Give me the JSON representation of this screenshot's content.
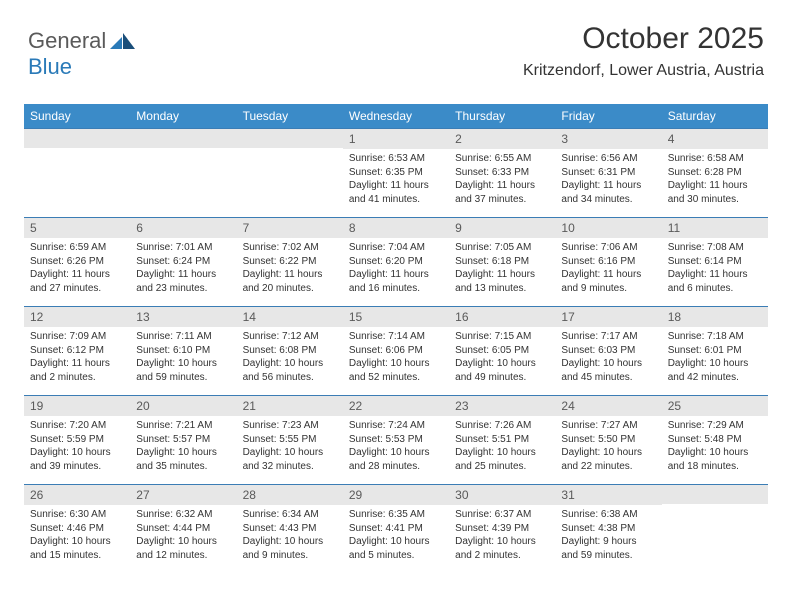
{
  "logo": {
    "word1": "General",
    "word2": "Blue"
  },
  "title": "October 2025",
  "location": "Kritzendorf, Lower Austria, Austria",
  "colors": {
    "header_bg": "#3b8bc8",
    "header_text": "#ffffff",
    "daynum_bg": "#e7e7e7",
    "daynum_text": "#5a5a5a",
    "border": "#3b7db5",
    "logo_gray": "#5a5a5a",
    "logo_blue": "#2a7ab8"
  },
  "dow": [
    "Sunday",
    "Monday",
    "Tuesday",
    "Wednesday",
    "Thursday",
    "Friday",
    "Saturday"
  ],
  "weeks": [
    [
      null,
      null,
      null,
      {
        "n": "1",
        "sr": "Sunrise: 6:53 AM",
        "ss": "Sunset: 6:35 PM",
        "dl": "Daylight: 11 hours and 41 minutes."
      },
      {
        "n": "2",
        "sr": "Sunrise: 6:55 AM",
        "ss": "Sunset: 6:33 PM",
        "dl": "Daylight: 11 hours and 37 minutes."
      },
      {
        "n": "3",
        "sr": "Sunrise: 6:56 AM",
        "ss": "Sunset: 6:31 PM",
        "dl": "Daylight: 11 hours and 34 minutes."
      },
      {
        "n": "4",
        "sr": "Sunrise: 6:58 AM",
        "ss": "Sunset: 6:28 PM",
        "dl": "Daylight: 11 hours and 30 minutes."
      }
    ],
    [
      {
        "n": "5",
        "sr": "Sunrise: 6:59 AM",
        "ss": "Sunset: 6:26 PM",
        "dl": "Daylight: 11 hours and 27 minutes."
      },
      {
        "n": "6",
        "sr": "Sunrise: 7:01 AM",
        "ss": "Sunset: 6:24 PM",
        "dl": "Daylight: 11 hours and 23 minutes."
      },
      {
        "n": "7",
        "sr": "Sunrise: 7:02 AM",
        "ss": "Sunset: 6:22 PM",
        "dl": "Daylight: 11 hours and 20 minutes."
      },
      {
        "n": "8",
        "sr": "Sunrise: 7:04 AM",
        "ss": "Sunset: 6:20 PM",
        "dl": "Daylight: 11 hours and 16 minutes."
      },
      {
        "n": "9",
        "sr": "Sunrise: 7:05 AM",
        "ss": "Sunset: 6:18 PM",
        "dl": "Daylight: 11 hours and 13 minutes."
      },
      {
        "n": "10",
        "sr": "Sunrise: 7:06 AM",
        "ss": "Sunset: 6:16 PM",
        "dl": "Daylight: 11 hours and 9 minutes."
      },
      {
        "n": "11",
        "sr": "Sunrise: 7:08 AM",
        "ss": "Sunset: 6:14 PM",
        "dl": "Daylight: 11 hours and 6 minutes."
      }
    ],
    [
      {
        "n": "12",
        "sr": "Sunrise: 7:09 AM",
        "ss": "Sunset: 6:12 PM",
        "dl": "Daylight: 11 hours and 2 minutes."
      },
      {
        "n": "13",
        "sr": "Sunrise: 7:11 AM",
        "ss": "Sunset: 6:10 PM",
        "dl": "Daylight: 10 hours and 59 minutes."
      },
      {
        "n": "14",
        "sr": "Sunrise: 7:12 AM",
        "ss": "Sunset: 6:08 PM",
        "dl": "Daylight: 10 hours and 56 minutes."
      },
      {
        "n": "15",
        "sr": "Sunrise: 7:14 AM",
        "ss": "Sunset: 6:06 PM",
        "dl": "Daylight: 10 hours and 52 minutes."
      },
      {
        "n": "16",
        "sr": "Sunrise: 7:15 AM",
        "ss": "Sunset: 6:05 PM",
        "dl": "Daylight: 10 hours and 49 minutes."
      },
      {
        "n": "17",
        "sr": "Sunrise: 7:17 AM",
        "ss": "Sunset: 6:03 PM",
        "dl": "Daylight: 10 hours and 45 minutes."
      },
      {
        "n": "18",
        "sr": "Sunrise: 7:18 AM",
        "ss": "Sunset: 6:01 PM",
        "dl": "Daylight: 10 hours and 42 minutes."
      }
    ],
    [
      {
        "n": "19",
        "sr": "Sunrise: 7:20 AM",
        "ss": "Sunset: 5:59 PM",
        "dl": "Daylight: 10 hours and 39 minutes."
      },
      {
        "n": "20",
        "sr": "Sunrise: 7:21 AM",
        "ss": "Sunset: 5:57 PM",
        "dl": "Daylight: 10 hours and 35 minutes."
      },
      {
        "n": "21",
        "sr": "Sunrise: 7:23 AM",
        "ss": "Sunset: 5:55 PM",
        "dl": "Daylight: 10 hours and 32 minutes."
      },
      {
        "n": "22",
        "sr": "Sunrise: 7:24 AM",
        "ss": "Sunset: 5:53 PM",
        "dl": "Daylight: 10 hours and 28 minutes."
      },
      {
        "n": "23",
        "sr": "Sunrise: 7:26 AM",
        "ss": "Sunset: 5:51 PM",
        "dl": "Daylight: 10 hours and 25 minutes."
      },
      {
        "n": "24",
        "sr": "Sunrise: 7:27 AM",
        "ss": "Sunset: 5:50 PM",
        "dl": "Daylight: 10 hours and 22 minutes."
      },
      {
        "n": "25",
        "sr": "Sunrise: 7:29 AM",
        "ss": "Sunset: 5:48 PM",
        "dl": "Daylight: 10 hours and 18 minutes."
      }
    ],
    [
      {
        "n": "26",
        "sr": "Sunrise: 6:30 AM",
        "ss": "Sunset: 4:46 PM",
        "dl": "Daylight: 10 hours and 15 minutes."
      },
      {
        "n": "27",
        "sr": "Sunrise: 6:32 AM",
        "ss": "Sunset: 4:44 PM",
        "dl": "Daylight: 10 hours and 12 minutes."
      },
      {
        "n": "28",
        "sr": "Sunrise: 6:34 AM",
        "ss": "Sunset: 4:43 PM",
        "dl": "Daylight: 10 hours and 9 minutes."
      },
      {
        "n": "29",
        "sr": "Sunrise: 6:35 AM",
        "ss": "Sunset: 4:41 PM",
        "dl": "Daylight: 10 hours and 5 minutes."
      },
      {
        "n": "30",
        "sr": "Sunrise: 6:37 AM",
        "ss": "Sunset: 4:39 PM",
        "dl": "Daylight: 10 hours and 2 minutes."
      },
      {
        "n": "31",
        "sr": "Sunrise: 6:38 AM",
        "ss": "Sunset: 4:38 PM",
        "dl": "Daylight: 9 hours and 59 minutes."
      },
      null
    ]
  ]
}
